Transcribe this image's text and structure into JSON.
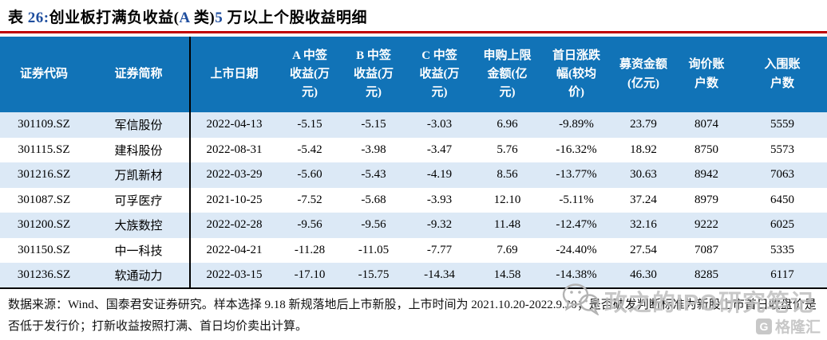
{
  "title": {
    "full": "表 26:创业板打满负收益(A 类)5 万以上个股收益明细",
    "segments": [
      {
        "text": "表 ",
        "blue": false
      },
      {
        "text": "26:",
        "blue": true
      },
      {
        "text": "创业板打满负收益(",
        "blue": false
      },
      {
        "text": "A",
        "blue": true
      },
      {
        "text": " 类)",
        "blue": false
      },
      {
        "text": "5",
        "blue": true
      },
      {
        "text": " 万以上个股收益明细",
        "blue": false
      }
    ]
  },
  "colors": {
    "title_rule": "#C00000",
    "title_number": "#1F4E9E",
    "header_background": "#1173B7",
    "header_text": "#FFFFFF",
    "row_stripe": "#DCE9F6",
    "watermark_gray": "#BFBFBF"
  },
  "table": {
    "columns": [
      "证券代码",
      "证券简称",
      "上市日期",
      "A 中签收益(万元)",
      "B 中签收益(万元)",
      "C 中签收益(万元)",
      "申购上限金额(亿元)",
      "首日涨跌幅(较均价)",
      "募资金额(亿元)",
      "询价账户数",
      "入围账户数"
    ],
    "rows": [
      [
        "301109.SZ",
        "军信股份",
        "2022-04-13",
        "-5.15",
        "-5.15",
        "-3.03",
        "6.96",
        "-9.89%",
        "23.79",
        "8074",
        "5559"
      ],
      [
        "301115.SZ",
        "建科股份",
        "2022-08-31",
        "-5.42",
        "-3.98",
        "-3.47",
        "5.76",
        "-16.32%",
        "18.92",
        "8750",
        "5573"
      ],
      [
        "301216.SZ",
        "万凯新材",
        "2022-03-29",
        "-5.60",
        "-5.43",
        "-4.19",
        "8.56",
        "-13.77%",
        "30.63",
        "8942",
        "7063"
      ],
      [
        "301087.SZ",
        "可孚医疗",
        "2021-10-25",
        "-7.52",
        "-5.68",
        "-3.93",
        "12.10",
        "-5.11%",
        "37.24",
        "8979",
        "6450"
      ],
      [
        "301200.SZ",
        "大族数控",
        "2022-02-28",
        "-9.56",
        "-9.56",
        "-9.32",
        "11.48",
        "-12.47%",
        "32.16",
        "9222",
        "6025"
      ],
      [
        "301150.SZ",
        "中一科技",
        "2022-04-21",
        "-11.28",
        "-11.05",
        "-7.77",
        "7.69",
        "-24.40%",
        "27.54",
        "7087",
        "5335"
      ],
      [
        "301236.SZ",
        "软通动力",
        "2022-03-15",
        "-17.10",
        "-15.75",
        "-14.34",
        "14.58",
        "-14.38%",
        "46.30",
        "8285",
        "6117"
      ]
    ]
  },
  "footnote": "数据来源：Wind、国泰君安证券研究。样本选择 9.18 新规落地后上市新股，上市时间为 2021.10.20-2022.9.30；是否破发判断标准为新股上市首日收盘价是否低于发行价；打新收益按照打满、首日均价卖出计算。",
  "watermark": {
    "text": "政之的IPO研究笔记",
    "icon": "wechat-icon"
  },
  "brand": {
    "icon": "gelonghui-icon",
    "text": "格隆汇"
  }
}
